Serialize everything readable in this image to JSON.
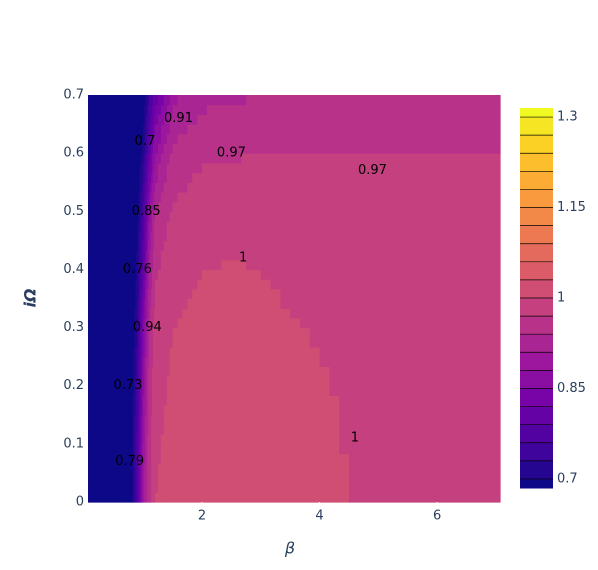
{
  "chart_data": {
    "type": "contour",
    "x_title": "β",
    "y_title": "iΩ",
    "x": [
      0.06,
      0.6,
      0.8,
      0.9,
      1.0,
      1.1,
      1.2,
      1.5,
      2,
      2.5,
      3,
      4,
      5,
      6,
      7.07
    ],
    "y": [
      0,
      0.1,
      0.2,
      0.3,
      0.4,
      0.5,
      0.6,
      0.7
    ],
    "z": [
      [
        0.6,
        0.65,
        0.69,
        0.78,
        0.9,
        0.96,
        1.0,
        1.01,
        1.015,
        1.015,
        1.012,
        1.005,
        0.995,
        0.99,
        0.985
      ],
      [
        0.6,
        0.65,
        0.69,
        0.77,
        0.89,
        0.96,
        0.995,
        1.008,
        1.014,
        1.014,
        1.011,
        1.004,
        0.994,
        0.99,
        0.985
      ],
      [
        0.6,
        0.65,
        0.68,
        0.75,
        0.87,
        0.95,
        0.99,
        1.005,
        1.012,
        1.012,
        1.009,
        1.002,
        0.993,
        0.989,
        0.985
      ],
      [
        0.6,
        0.64,
        0.67,
        0.73,
        0.85,
        0.94,
        0.98,
        1.0,
        1.008,
        1.008,
        1.005,
        0.998,
        0.991,
        0.988,
        0.984
      ],
      [
        0.6,
        0.64,
        0.66,
        0.71,
        0.8,
        0.91,
        0.965,
        0.99,
        1.0,
        1.002,
        1.0,
        0.993,
        0.988,
        0.986,
        0.983
      ],
      [
        0.6,
        0.63,
        0.65,
        0.69,
        0.76,
        0.87,
        0.94,
        0.975,
        0.985,
        0.988,
        0.987,
        0.984,
        0.982,
        0.981,
        0.979
      ],
      [
        0.6,
        0.62,
        0.64,
        0.67,
        0.71,
        0.8,
        0.88,
        0.95,
        0.966,
        0.968,
        0.969,
        0.969,
        0.969,
        0.969,
        0.97
      ],
      [
        0.6,
        0.61,
        0.63,
        0.65,
        0.68,
        0.74,
        0.8,
        0.9,
        0.93,
        0.935,
        0.94,
        0.945,
        0.948,
        0.95,
        0.952
      ]
    ],
    "contours": {
      "start": 0.7,
      "end": 1.3,
      "size": 0.03
    },
    "colorscale": [
      "#0d0887",
      "#46039f",
      "#7201a8",
      "#9c179e",
      "#bd3786",
      "#d8576b",
      "#ed7953",
      "#fb9f3a",
      "#fdca26",
      "#f0f921"
    ],
    "contour_labels": [
      {
        "value": 0.91,
        "x": 1.6,
        "y": 0.66
      },
      {
        "value": 0.97,
        "x": 2.5,
        "y": 0.6
      },
      {
        "value": 0.97,
        "x": 4.9,
        "y": 0.57
      },
      {
        "value": 1,
        "x": 2.7,
        "y": 0.42
      },
      {
        "value": 1,
        "x": 4.6,
        "y": 0.11
      },
      {
        "value": 0.7,
        "x": 1.03,
        "y": 0.62
      },
      {
        "value": 0.85,
        "x": 1.05,
        "y": 0.5
      },
      {
        "value": 0.76,
        "x": 0.9,
        "y": 0.4
      },
      {
        "value": 0.94,
        "x": 1.07,
        "y": 0.3
      },
      {
        "value": 0.73,
        "x": 0.74,
        "y": 0.2
      },
      {
        "value": 0.79,
        "x": 0.77,
        "y": 0.07
      }
    ],
    "xlim": [
      0.06,
      7.07
    ],
    "ylim": [
      0,
      0.7
    ],
    "xticks": [
      2,
      4,
      6
    ],
    "yticks": [
      0,
      0.1,
      0.2,
      0.3,
      0.4,
      0.5,
      0.6,
      0.7
    ],
    "colorbar_ticks": [
      0.7,
      0.85,
      1,
      1.15,
      1.3
    ]
  }
}
